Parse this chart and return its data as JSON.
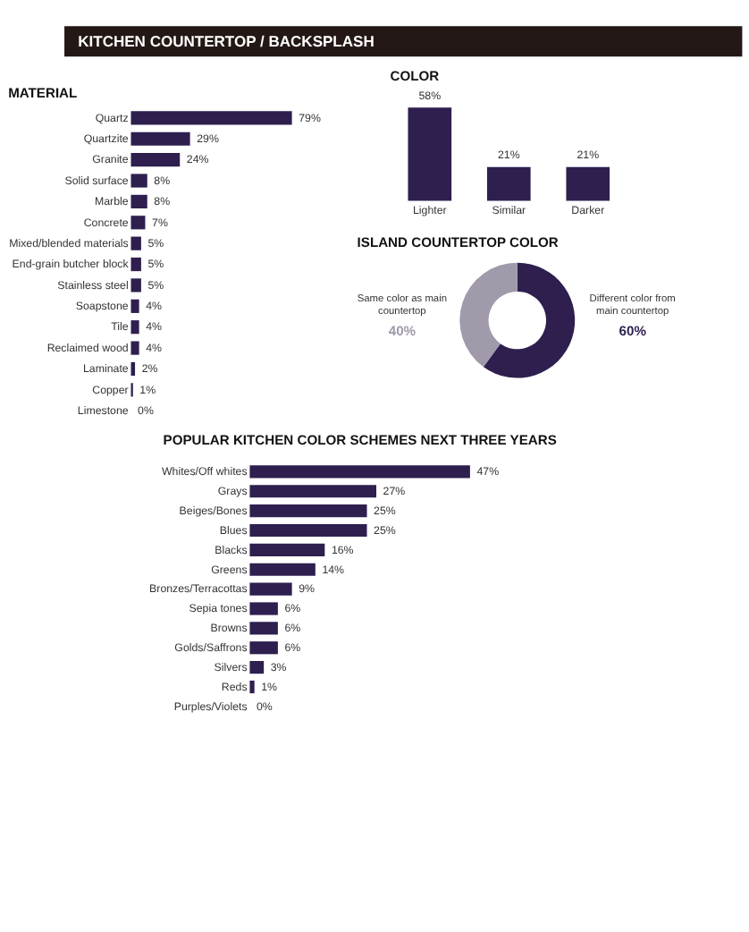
{
  "chart_data": [
    {
      "type": "bar",
      "orientation": "horizontal",
      "title": "KITCHEN COUNTERTOP / BACKSPLASH",
      "subtitle": "MATERIAL",
      "tick_labels": "y",
      "color": "#2e1f4f",
      "categories": [
        "Quartz",
        "Quartzite",
        "Granite",
        "Solid surface",
        "Marble",
        "Concrete",
        "Mixed/blended materials",
        "End-grain butcher block",
        "Stainless steel",
        "Soapstone",
        "Tile",
        "Reclaimed wood",
        "Laminate",
        "Copper",
        "Limestone"
      ],
      "values": [
        79,
        29,
        24,
        8,
        8,
        7,
        5,
        5,
        5,
        4,
        4,
        4,
        2,
        1,
        0
      ],
      "value_labels": [
        "79%",
        "29%",
        "24%",
        "8%",
        "8%",
        "7%",
        "5%",
        "5%",
        "5%",
        "4%",
        "4%",
        "4%",
        "2%",
        "1%",
        "0%"
      ]
    },
    {
      "type": "bar",
      "title": "COLOR",
      "tick_labels": "x",
      "color": "#2e1f4f",
      "categories": [
        "Lighter",
        "Similar",
        "Darker"
      ],
      "values": [
        58,
        21,
        21
      ],
      "value_labels": [
        "58%",
        "21%",
        "21%"
      ]
    },
    {
      "type": "donut",
      "title": "ISLAND COUNTERTOP COLOR",
      "categories": [
        "Different color from main countertop",
        "Same color as main countertop"
      ],
      "values": [
        60,
        40
      ],
      "colors": [
        "#2e1f4f",
        "#a09aab"
      ],
      "value_labels": [
        "60%",
        "40%"
      ]
    },
    {
      "type": "bar",
      "orientation": "horizontal",
      "title": "POPULAR KITCHEN COLOR SCHEMES NEXT THREE YEARS",
      "tick_labels": "y",
      "color": "#2e1f4f",
      "categories": [
        "Whites/Off whites",
        "Grays",
        "Beiges/Bones",
        "Blues",
        "Blacks",
        "Greens",
        "Bronzes/Terracottas",
        "Sepia tones",
        "Browns",
        "Golds/Saffrons",
        "Silvers",
        "Reds",
        "Purples/Violets"
      ],
      "values": [
        47,
        27,
        25,
        25,
        16,
        14,
        9,
        6,
        6,
        6,
        3,
        1,
        0
      ],
      "value_labels": [
        "47%",
        "27%",
        "25%",
        "25%",
        "16%",
        "14%",
        "9%",
        "6%",
        "6%",
        "6%",
        "3%",
        "1%",
        "0%"
      ]
    }
  ]
}
